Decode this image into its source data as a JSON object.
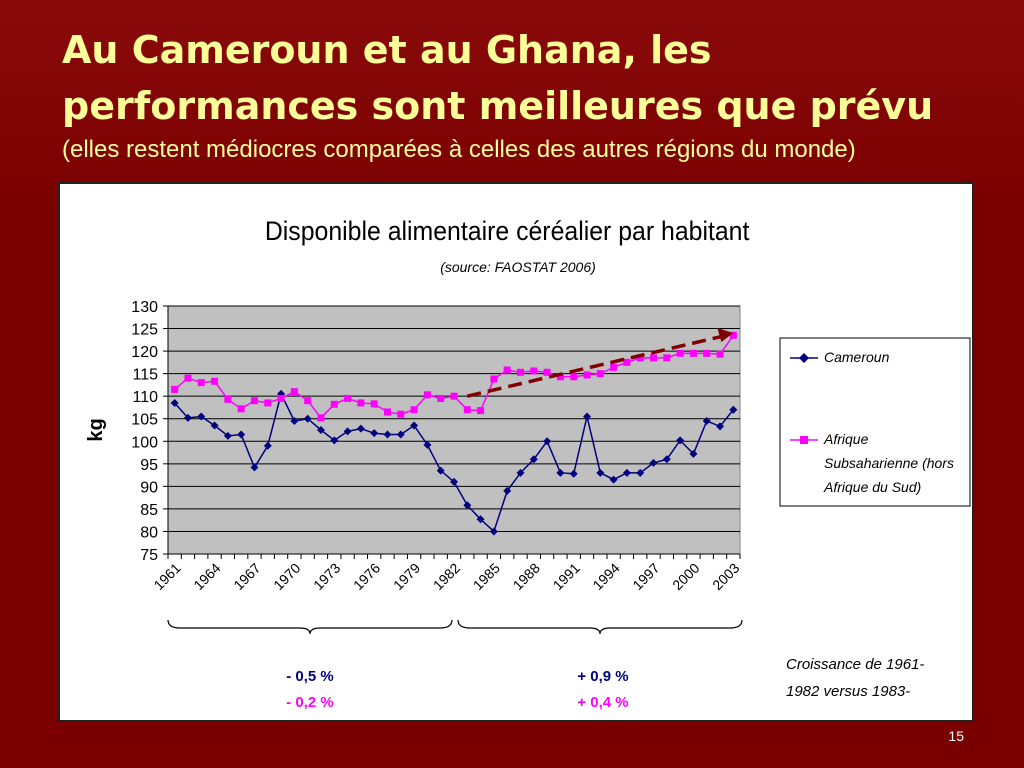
{
  "slide": {
    "title_line1": "Au Cameroun et au Ghana, les",
    "title_line2": "performances sont meilleures que prévu",
    "subtitle": "(elles restent médiocres comparées à celles des autres régions du monde)",
    "page_number": "15"
  },
  "colors": {
    "background": "#7a0000",
    "title": "#ffff99",
    "cameroun": "#000080",
    "afrique": "#ff00ff",
    "plot_bg": "#c0c0c0",
    "trend": "#800000"
  },
  "chart_data": {
    "type": "line",
    "title": "Disponible alimentaire céréalier par habitant",
    "subtitle": "(source: FAOSTAT 2006)",
    "ylabel": "kg",
    "xlabel": "",
    "ylim": [
      75,
      130
    ],
    "yticks": [
      75,
      80,
      85,
      90,
      95,
      100,
      105,
      110,
      115,
      120,
      125,
      130
    ],
    "xlim": [
      1961,
      2003
    ],
    "xtick_labels": [
      "1961",
      "1964",
      "1967",
      "1970",
      "1973",
      "1976",
      "1979",
      "1982",
      "1985",
      "1988",
      "1991",
      "1994",
      "1997",
      "2000",
      "2003"
    ],
    "grid": true,
    "legend_position": "right",
    "x": [
      1961,
      1962,
      1963,
      1964,
      1965,
      1966,
      1967,
      1968,
      1969,
      1970,
      1971,
      1972,
      1973,
      1974,
      1975,
      1976,
      1977,
      1978,
      1979,
      1980,
      1981,
      1982,
      1983,
      1984,
      1985,
      1986,
      1987,
      1988,
      1989,
      1990,
      1991,
      1992,
      1993,
      1994,
      1995,
      1996,
      1997,
      1998,
      1999,
      2000,
      2001,
      2002,
      2003
    ],
    "series": [
      {
        "name": "Cameroun",
        "values": [
          108.5,
          105.2,
          105.5,
          103.5,
          101.2,
          101.5,
          94.2,
          99,
          110.5,
          104.5,
          105,
          102.5,
          100.2,
          102.2,
          102.8,
          101.8,
          101.5,
          101.5,
          103.5,
          99.2,
          93.5,
          91,
          85.8,
          82.7,
          80,
          89,
          93,
          96,
          100,
          93,
          92.8,
          105.5,
          93,
          91.5,
          93,
          93,
          95.2,
          96,
          100.2,
          97.2,
          104.5,
          103.3,
          107
        ]
      },
      {
        "name": "Afrique Subsaharienne (hors Afrique du Sud)",
        "values": [
          111.5,
          114,
          113,
          113.3,
          109.3,
          107.2,
          109,
          108.5,
          109.5,
          111,
          109,
          105.2,
          108.2,
          109.5,
          108.5,
          108.3,
          106.5,
          106,
          107,
          110.3,
          109.5,
          110,
          107,
          106.8,
          113.8,
          115.8,
          115.3,
          115.6,
          115.3,
          114.3,
          114.3,
          114.7,
          115,
          116.4,
          117.5,
          118.5,
          118.5,
          118.5,
          119.5,
          119.5,
          119.5,
          119.3,
          123.5
        ]
      }
    ],
    "annotations": {
      "trend_arrow": {
        "from": [
          1983,
          110
        ],
        "to": [
          2003,
          124
        ]
      },
      "period1_label_a": "- 0,5 %",
      "period1_label_b": "- 0,2 %",
      "period2_label_a": "+ 0,9 %",
      "period2_label_b": "+ 0,4 %",
      "note_line1": "Croissance de 1961-",
      "note_line2": "1982 versus 1983-"
    }
  }
}
